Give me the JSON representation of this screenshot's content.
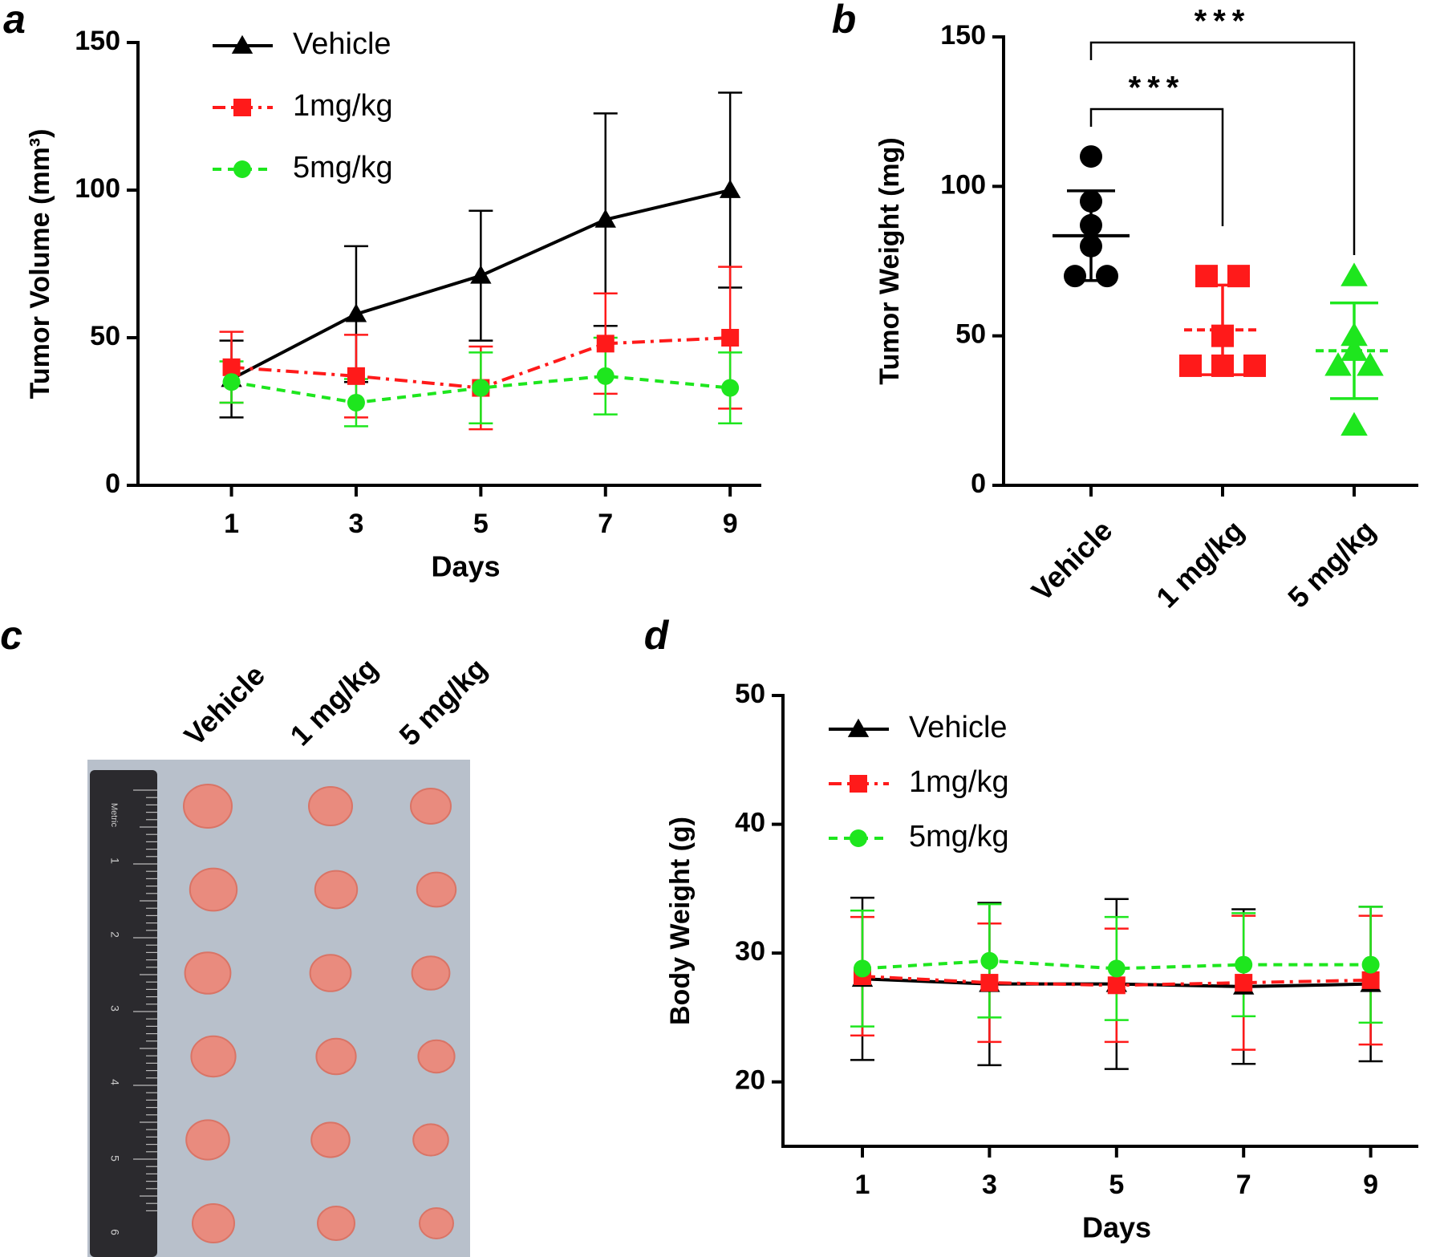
{
  "chart_data": [
    {
      "type": "line",
      "panel": "a",
      "x_label": "Days",
      "y_label": "Tumor Volume (mm³)",
      "x": [
        1,
        3,
        5,
        7,
        9
      ],
      "xlim": [
        -0.5,
        9.5
      ],
      "xticks": [
        1,
        3,
        5,
        7,
        9
      ],
      "ylim": [
        0,
        150
      ],
      "yticks": [
        0,
        50,
        100,
        150
      ],
      "legend": "upper left",
      "series": [
        {
          "name": "Vehicle",
          "color": "#000000",
          "marker": "triangle",
          "linestyle": "solid",
          "values": [
            36,
            58,
            71,
            90,
            100
          ],
          "errors": [
            13,
            23,
            22,
            36,
            33
          ]
        },
        {
          "name": "1mg/kg",
          "color": "#ff1a1a",
          "marker": "square",
          "linestyle": "dashdot",
          "values": [
            40,
            37,
            33,
            48,
            50
          ],
          "errors": [
            12,
            14,
            14,
            17,
            24
          ]
        },
        {
          "name": "5mg/kg",
          "color": "#1ee61e",
          "marker": "circle",
          "linestyle": "dashed",
          "values": [
            35,
            28,
            33,
            37,
            33
          ],
          "errors": [
            7,
            8,
            12,
            13,
            12
          ]
        }
      ]
    },
    {
      "type": "dot",
      "panel": "b",
      "y_label": "Tumor Weight (mg)",
      "categories": [
        "Vehicle",
        "1 mg/kg",
        "5 mg/kg"
      ],
      "ylim": [
        0,
        150
      ],
      "yticks": [
        0,
        50,
        100,
        150
      ],
      "significance": [
        "***",
        "***"
      ],
      "groups": [
        {
          "color": "#000000",
          "marker": "circle",
          "linestyle": "solid",
          "values": [
            110,
            95,
            87,
            80,
            70,
            70
          ],
          "mean": 83.5,
          "error": 15
        },
        {
          "color": "#ff1a1a",
          "marker": "square",
          "linestyle": "dashdot",
          "values": [
            70,
            70,
            50,
            40,
            40,
            40
          ],
          "mean": 52,
          "error": 15
        },
        {
          "color": "#1ee61e",
          "marker": "triangle",
          "linestyle": "dashed",
          "values": [
            70,
            50,
            45,
            40,
            40,
            20
          ],
          "mean": 45,
          "error": 16
        }
      ]
    },
    {
      "type": "photo",
      "panel": "c",
      "categories": [
        "Vehicle",
        "1 mg/kg",
        "5 mg/kg"
      ],
      "ruler_labels": [
        "Metric",
        "1",
        "2",
        "3",
        "4",
        "5",
        "6"
      ]
    },
    {
      "type": "line",
      "panel": "d",
      "x_label": "Days",
      "y_label": "Body Weight (g)",
      "x": [
        1,
        3,
        5,
        7,
        9
      ],
      "xlim": [
        -0.25,
        9.75
      ],
      "xticks": [
        1,
        3,
        5,
        7,
        9
      ],
      "ylim": [
        15,
        50
      ],
      "yticks": [
        20,
        30,
        40,
        50
      ],
      "legend": "upper left",
      "series": [
        {
          "name": "Vehicle",
          "color": "#000000",
          "marker": "triangle",
          "linestyle": "solid",
          "values": [
            28.0,
            27.6,
            27.6,
            27.4,
            27.6
          ],
          "errors": [
            6.3,
            6.3,
            6.6,
            6.0,
            6.0
          ]
        },
        {
          "name": "1mg/kg",
          "color": "#ff1a1a",
          "marker": "square",
          "linestyle": "dashdot",
          "values": [
            28.2,
            27.7,
            27.5,
            27.7,
            27.9
          ],
          "errors": [
            4.6,
            4.6,
            4.4,
            5.2,
            5.0
          ]
        },
        {
          "name": "5mg/kg",
          "color": "#1ee61e",
          "marker": "circle",
          "linestyle": "dashed",
          "values": [
            28.8,
            29.4,
            28.8,
            29.1,
            29.1
          ],
          "errors": [
            4.5,
            4.4,
            4.0,
            4.0,
            4.5
          ]
        }
      ]
    }
  ]
}
